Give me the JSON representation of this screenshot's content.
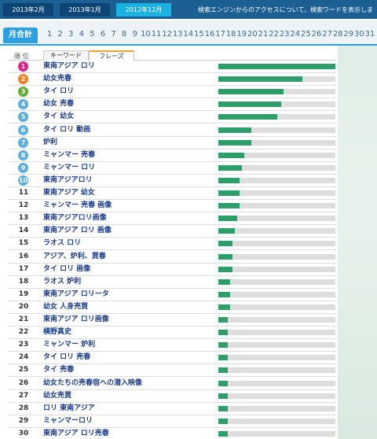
{
  "top_tabs": [
    "2013年2月",
    "2013年1月",
    "2012年12月"
  ],
  "active_tab": 2,
  "notice": "検索エンジンからのアクセスについて、検索ワードを表示します。",
  "day_tab": "月合計",
  "days": [
    1,
    2,
    3,
    4,
    5,
    6,
    7,
    8,
    9,
    10,
    11,
    12,
    13,
    14,
    15,
    16,
    17,
    18,
    19,
    20,
    21,
    22,
    23,
    24,
    25,
    26,
    27,
    28,
    29,
    30,
    31
  ],
  "rank_header": "順 位",
  "keyword_tabs": [
    "キーワード",
    "フレーズ"
  ],
  "active_keyword_tab": 1,
  "rows": [
    {
      "rank": 1,
      "phrase": "東南アジア ロリ",
      "bar": 100
    },
    {
      "rank": 2,
      "phrase": "幼女売春",
      "bar": 72
    },
    {
      "rank": 3,
      "phrase": "タイ ロリ",
      "bar": 56
    },
    {
      "rank": 4,
      "phrase": "幼女 売春",
      "bar": 54
    },
    {
      "rank": 5,
      "phrase": "タイ 幼女",
      "bar": 50
    },
    {
      "rank": 6,
      "phrase": "タイ ロリ 動画",
      "bar": 28
    },
    {
      "rank": 7,
      "phrase": "炉利",
      "bar": 28
    },
    {
      "rank": 8,
      "phrase": "ミャンマー 売春",
      "bar": 22
    },
    {
      "rank": 9,
      "phrase": "ミャンマー ロリ",
      "bar": 20
    },
    {
      "rank": 10,
      "phrase": "東南アジアロリ",
      "bar": 18
    },
    {
      "rank": 11,
      "phrase": "東南アジア 幼女",
      "bar": 18
    },
    {
      "rank": 12,
      "phrase": "ミャンマー 売春 画像",
      "bar": 18
    },
    {
      "rank": 13,
      "phrase": "東南アジアロリ画像",
      "bar": 16
    },
    {
      "rank": 14,
      "phrase": "東南アジア ロリ 画像",
      "bar": 14
    },
    {
      "rank": 15,
      "phrase": "ラオス ロリ",
      "bar": 12
    },
    {
      "rank": 16,
      "phrase": "アジア、炉利、買春",
      "bar": 12
    },
    {
      "rank": 17,
      "phrase": "タイ ロリ 画像",
      "bar": 12
    },
    {
      "rank": 18,
      "phrase": "ラオス 炉利",
      "bar": 10
    },
    {
      "rank": 19,
      "phrase": "東南アジア ロリータ",
      "bar": 10
    },
    {
      "rank": 20,
      "phrase": "幼女 人身売買",
      "bar": 10
    },
    {
      "rank": 21,
      "phrase": "東南アジア ロリ画像",
      "bar": 8
    },
    {
      "rank": 22,
      "phrase": "横野真史",
      "bar": 8
    },
    {
      "rank": 23,
      "phrase": "ミャンマー 炉利",
      "bar": 8
    },
    {
      "rank": 24,
      "phrase": "タイ ロリ 売春",
      "bar": 8
    },
    {
      "rank": 25,
      "phrase": "タイ 売春",
      "bar": 8
    },
    {
      "rank": 26,
      "phrase": "幼女たちの売春宿への潜入映像",
      "bar": 8
    },
    {
      "rank": 27,
      "phrase": "幼女売買",
      "bar": 8
    },
    {
      "rank": 28,
      "phrase": "ロリ 東南アジア",
      "bar": 8
    },
    {
      "rank": 29,
      "phrase": "ミャンマーロリ",
      "bar": 8
    },
    {
      "rank": 30,
      "phrase": "東南アジア ロリ売春",
      "bar": 8
    }
  ]
}
